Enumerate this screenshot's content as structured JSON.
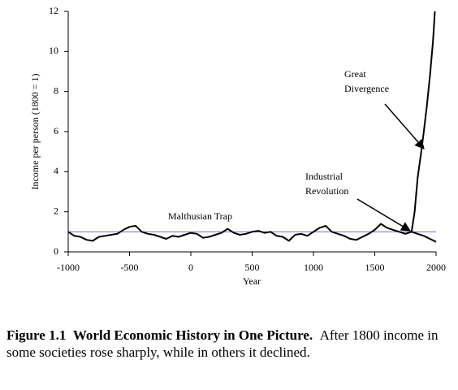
{
  "chart_data": {
    "type": "line",
    "y_label": "Income per person (1800 = 1)",
    "x_label": "Year",
    "xlim": [
      -1000,
      2000
    ],
    "xticks": [
      -1000,
      -500,
      0,
      500,
      1000,
      1500,
      2000
    ],
    "ylim": [
      0,
      12
    ],
    "yticks": [
      0,
      2,
      4,
      6,
      8,
      10,
      12
    ],
    "hline": {
      "value": 1,
      "color": "#8878cc"
    },
    "series": [
      {
        "color": "#000000",
        "x": [
          -1000,
          -950,
          -900,
          -850,
          -800,
          -750,
          -700,
          -650,
          -600,
          -550,
          -500,
          -450,
          -400,
          -350,
          -300,
          -250,
          -200,
          -150,
          -100,
          -50,
          0,
          50,
          100,
          150,
          200,
          250,
          300,
          350,
          400,
          450,
          500,
          550,
          600,
          650,
          700,
          750,
          800,
          850,
          900,
          950,
          1000,
          1050,
          1100,
          1150,
          1200,
          1250,
          1300,
          1350,
          1400,
          1450,
          1500,
          1550,
          1600,
          1650,
          1700,
          1750,
          1800,
          1825,
          1850,
          1875,
          1900,
          1925,
          1950,
          1975,
          1990
        ],
        "values": [
          1.0,
          0.8,
          0.75,
          0.6,
          0.55,
          0.75,
          0.8,
          0.85,
          0.9,
          1.1,
          1.25,
          1.3,
          1.0,
          0.9,
          0.85,
          0.75,
          0.65,
          0.8,
          0.75,
          0.85,
          0.95,
          0.9,
          0.7,
          0.75,
          0.85,
          0.95,
          1.15,
          0.95,
          0.85,
          0.9,
          1.0,
          1.05,
          0.95,
          1.0,
          0.8,
          0.75,
          0.55,
          0.85,
          0.9,
          0.8,
          1.0,
          1.2,
          1.3,
          1.0,
          0.9,
          0.8,
          0.65,
          0.6,
          0.75,
          0.9,
          1.1,
          1.4,
          1.2,
          1.1,
          1.0,
          0.9,
          1.0,
          2,
          3.7,
          4.8,
          6,
          7.3,
          8.8,
          10.5,
          12
        ]
      },
      {
        "color": "#000000",
        "x": [
          1800,
          1850,
          1900,
          1950,
          2000
        ],
        "values": [
          1.0,
          0.9,
          0.8,
          0.65,
          0.5
        ]
      }
    ],
    "annotations": [
      {
        "lines": [
          "Malthusian Trap"
        ]
      },
      {
        "lines": [
          "Industrial",
          "Revolution"
        ]
      },
      {
        "lines": [
          "Great",
          "Divergence"
        ]
      }
    ]
  },
  "caption": {
    "label": "Figure 1.1",
    "title": "World Economic History in One Picture.",
    "text": "After 1800 income in some societies rose sharply, while in others it declined."
  }
}
